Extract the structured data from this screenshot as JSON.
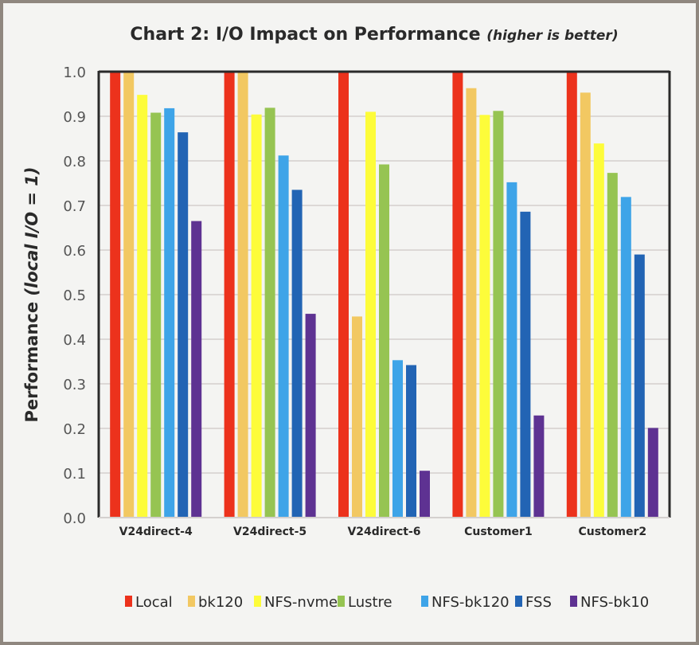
{
  "chart_data": {
    "type": "bar",
    "title": "Chart 2: I/O Impact on Performance",
    "title_note": "(higher is better)",
    "ylabel_main": "Performance",
    "ylabel_note": "(local I/O = 1)",
    "xlabel": "",
    "ylim": [
      0,
      1.0
    ],
    "yticks": [
      "0.0",
      "0.1",
      "0.2",
      "0.3",
      "0.4",
      "0.5",
      "0.6",
      "0.7",
      "0.8",
      "0.9",
      "1.0"
    ],
    "grid": true,
    "legend_position": "bottom",
    "categories": [
      "V24direct-4",
      "V24direct-5",
      "V24direct-6",
      "Customer1",
      "Customer2"
    ],
    "series": [
      {
        "name": "Local",
        "color": "#ec321c",
        "values": [
          1.0,
          1.0,
          1.0,
          1.0,
          1.0
        ]
      },
      {
        "name": "bk120",
        "color": "#f2c862",
        "values": [
          1.0,
          1.0,
          0.451,
          0.963,
          0.953
        ]
      },
      {
        "name": "NFS-nvme",
        "color": "#fdfc3a",
        "values": [
          0.948,
          0.904,
          0.91,
          0.903,
          0.839
        ]
      },
      {
        "name": "Lustre",
        "color": "#96c452",
        "values": [
          0.908,
          0.919,
          0.792,
          0.912,
          0.773
        ]
      },
      {
        "name": "NFS-bk120",
        "color": "#3ea4e8",
        "values": [
          0.918,
          0.812,
          0.353,
          0.752,
          0.719
        ]
      },
      {
        "name": "FSS",
        "color": "#2264b4",
        "values": [
          0.864,
          0.735,
          0.342,
          0.686,
          0.59
        ]
      },
      {
        "name": "NFS-bk10",
        "color": "#5e3292",
        "values": [
          0.665,
          0.457,
          0.105,
          0.229,
          0.201
        ]
      }
    ]
  }
}
